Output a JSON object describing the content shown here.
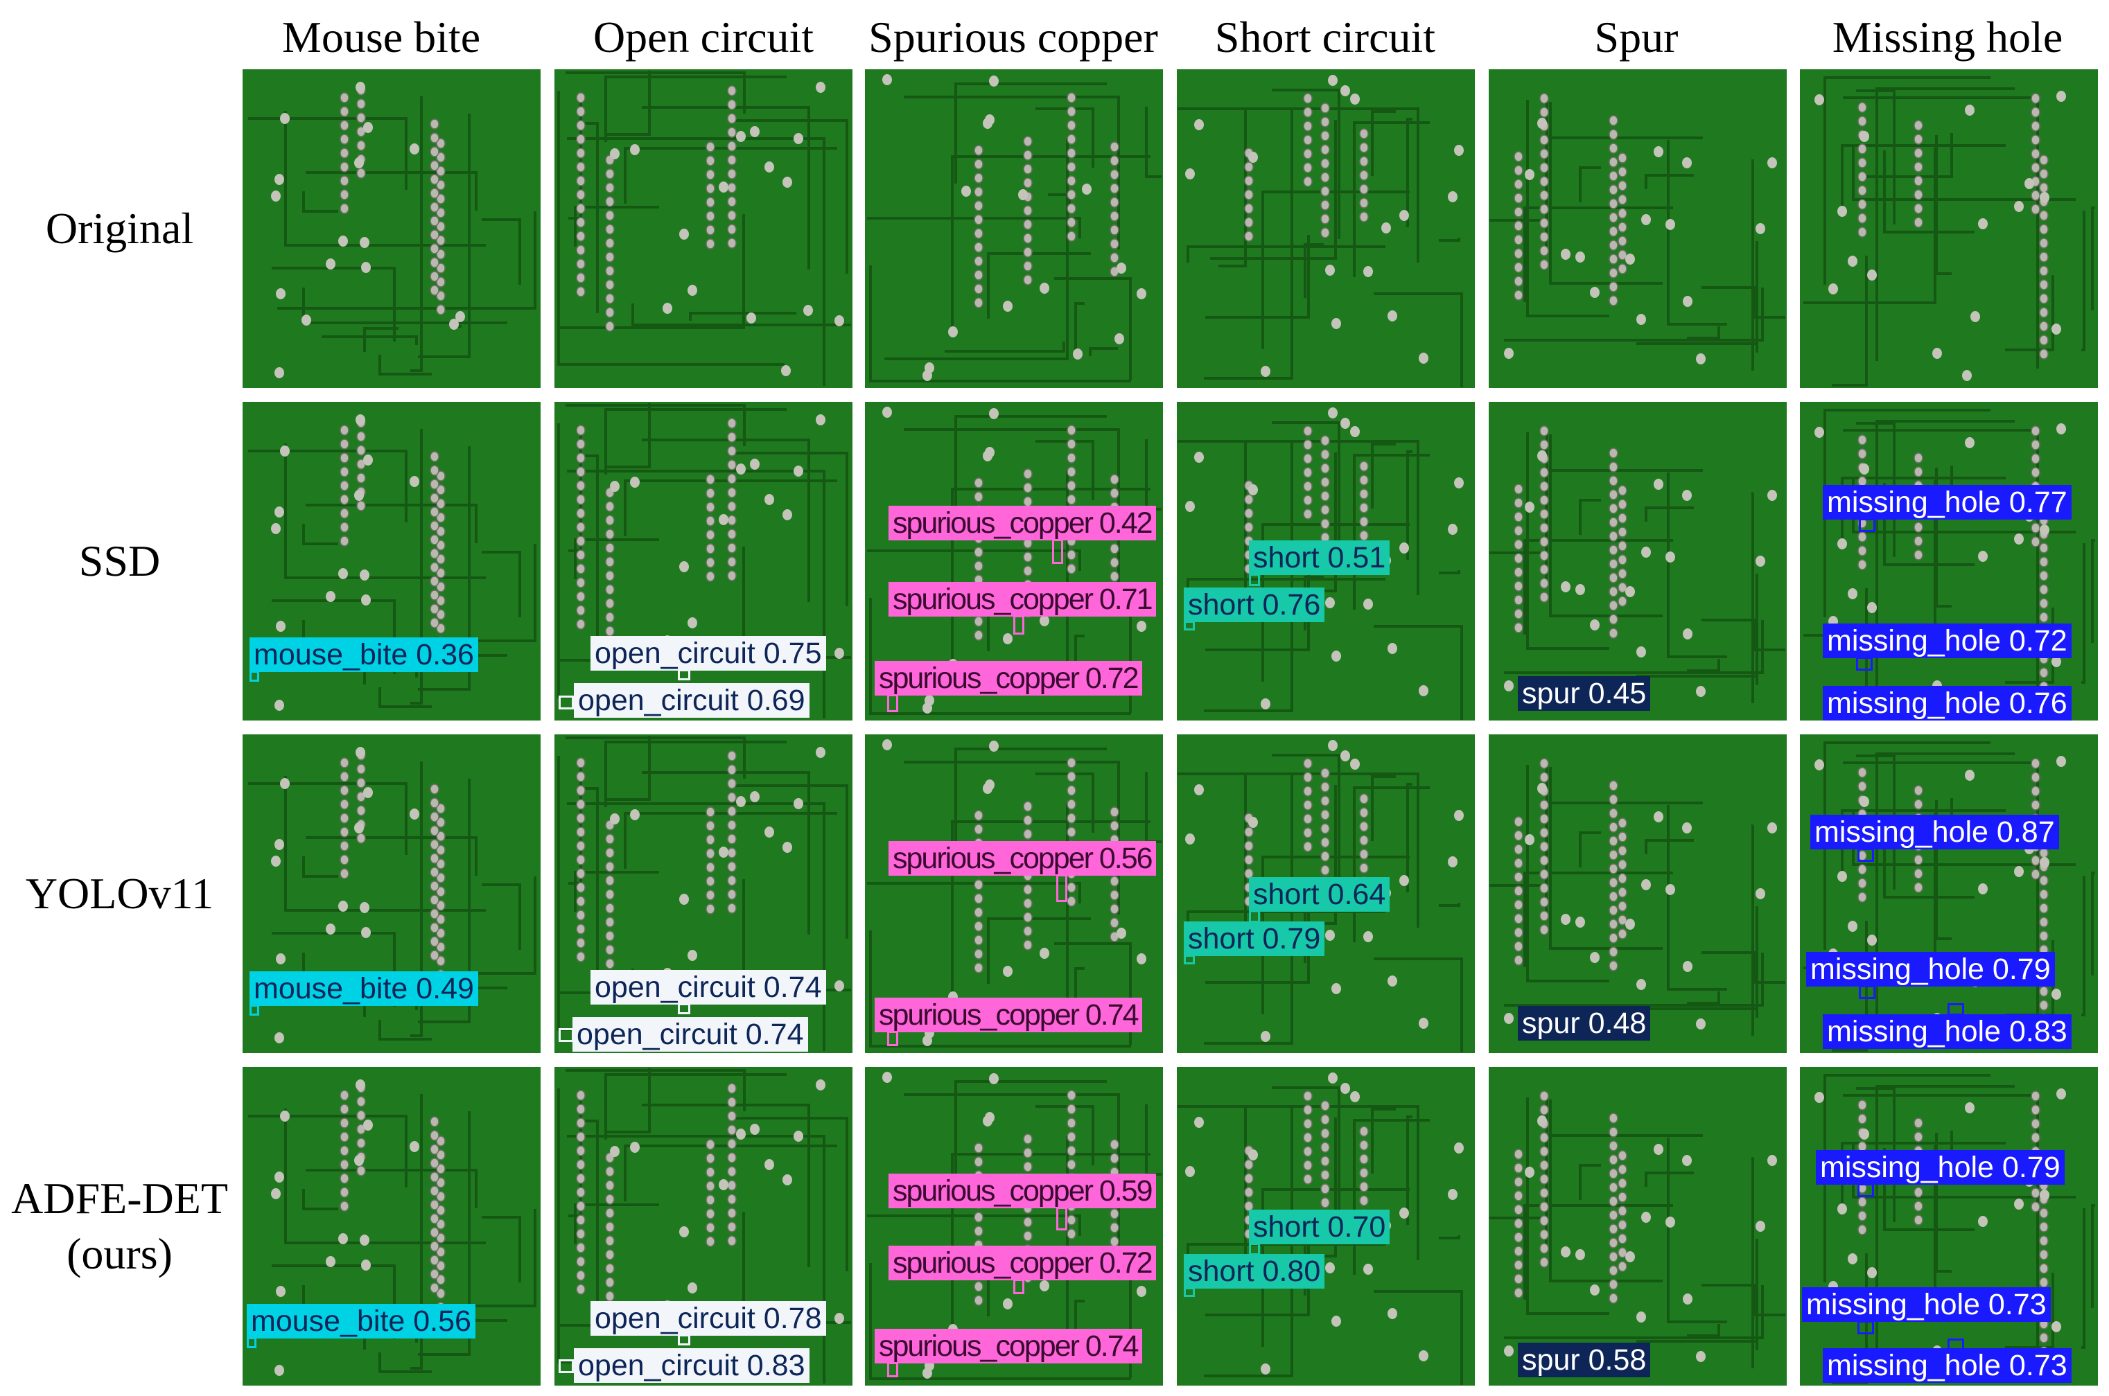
{
  "columns": [
    "Mouse bite",
    "Open circuit",
    "Spurious copper",
    "Short circuit",
    "Spur",
    "Missing hole"
  ],
  "rows": [
    {
      "label": "Original",
      "label2": ""
    },
    {
      "label": "SSD",
      "label2": ""
    },
    {
      "label": "YOLOv11",
      "label2": ""
    },
    {
      "label": "ADFE-DET",
      "label2": "(ours)"
    }
  ],
  "colors": {
    "board": "#1f7a1f",
    "mouse_bite": "#00d2e6",
    "open_circuit": "#f2f6fb",
    "spurious_copper": "#ff66d9",
    "short": "#17c9a8",
    "spur": "#0d2557",
    "missing_hole": "#1a1aff"
  },
  "detections": {
    "ssd": {
      "mouse_bite": [
        "mouse_bite 0.36"
      ],
      "open_circuit": [
        "open_circuit 0.75",
        "open_circuit 0.69"
      ],
      "spurious_copper": [
        "spurious_copper 0.42",
        "spurious_copper 0.71",
        "spurious_copper 0.72"
      ],
      "short": [
        "short 0.51",
        "short 0.76"
      ],
      "spur": [
        "spur 0.45"
      ],
      "missing_hole": [
        "missing_hole 0.77",
        "missing_hole 0.72",
        "missing_hole 0.76"
      ]
    },
    "yolo": {
      "mouse_bite": [
        "mouse_bite 0.49"
      ],
      "open_circuit": [
        "open_circuit 0.74",
        "open_circuit 0.74"
      ],
      "spurious_copper": [
        "spurious_copper 0.56",
        "spurious_copper 0.74"
      ],
      "short": [
        "short 0.64",
        "short 0.79"
      ],
      "spur": [
        "spur 0.48"
      ],
      "missing_hole": [
        "missing_hole 0.87",
        "missing_hole 0.79",
        "missing_hole 0.83"
      ]
    },
    "adfe": {
      "mouse_bite": [
        "mouse_bite 0.56"
      ],
      "open_circuit": [
        "open_circuit 0.78",
        "open_circuit 0.83"
      ],
      "spurious_copper": [
        "spurious_copper 0.59",
        "spurious_copper 0.72",
        "spurious_copper 0.74"
      ],
      "short": [
        "short 0.70",
        "short 0.80"
      ],
      "spur": [
        "spur 0.58"
      ],
      "missing_hole": [
        "missing_hole 0.79",
        "missing_hole 0.73",
        "missing_hole 0.73"
      ]
    }
  }
}
